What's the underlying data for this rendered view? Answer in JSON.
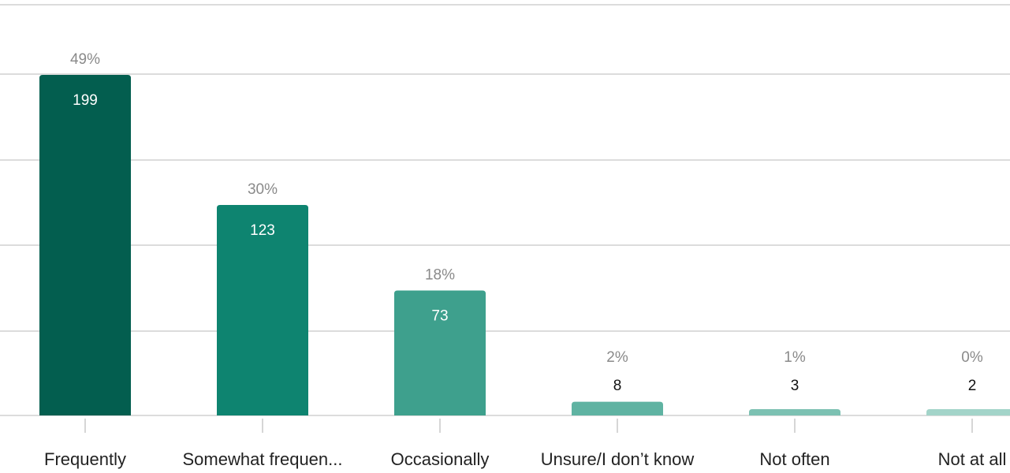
{
  "chart_data": {
    "type": "bar",
    "title": "",
    "xlabel": "",
    "ylabel": "",
    "categories": [
      "Frequently",
      "Somewhat frequen...",
      "Occasionally",
      "Unsure/I don’t know",
      "Not often",
      "Not at all"
    ],
    "values": [
      199,
      123,
      73,
      8,
      3,
      2
    ],
    "percent_labels": [
      "49%",
      "30%",
      "18%",
      "2%",
      "1%",
      "0%"
    ],
    "count_labels": [
      "199",
      "123",
      "73",
      "8",
      "3",
      "2"
    ],
    "bar_colors": [
      "#035e4f",
      "#0e8470",
      "#3ea08d",
      "#5fb3a2",
      "#7cc1b2",
      "#a3d4c9"
    ],
    "ylim": [
      0,
      199
    ],
    "grid": true,
    "legend": "none"
  }
}
